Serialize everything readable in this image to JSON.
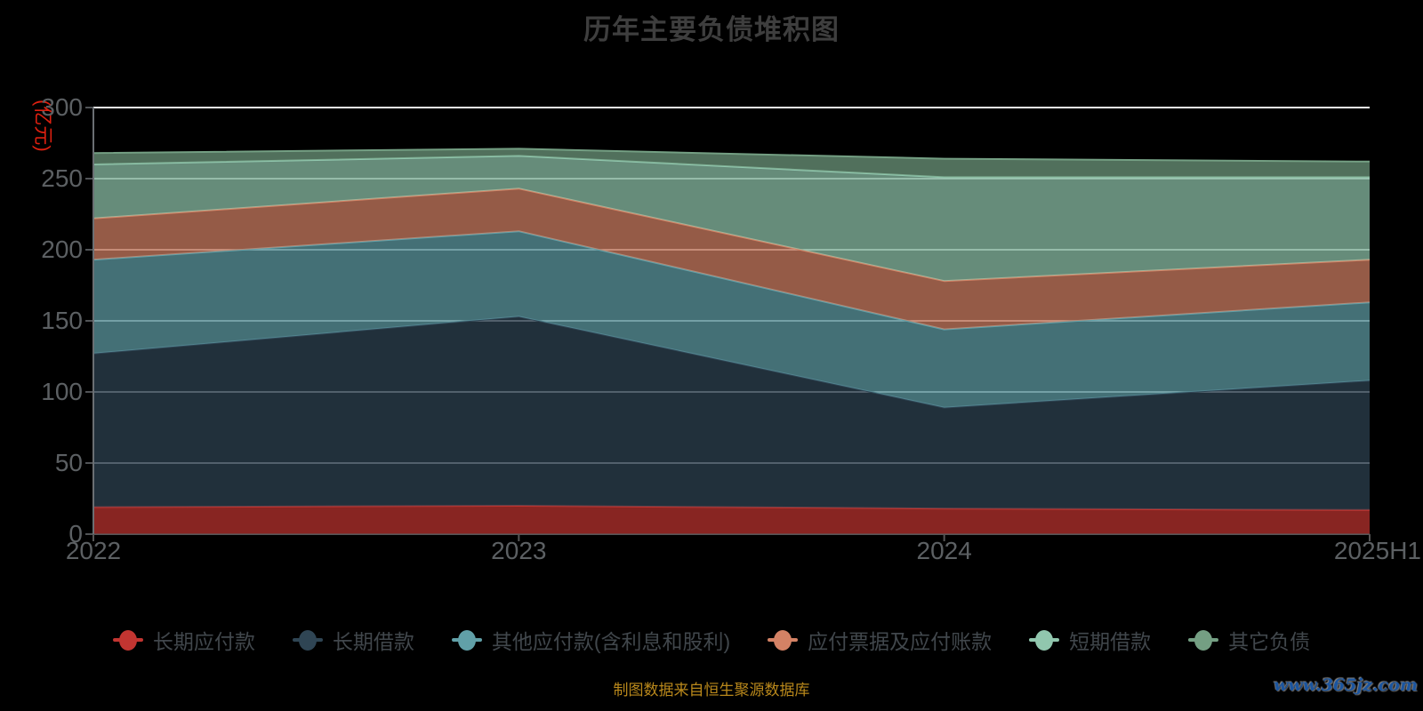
{
  "title": "历年主要负债堆积图",
  "caption": "制图数据来自恒生聚源数据库",
  "watermark": "www.365jz.com",
  "y_axis": {
    "name": "(亿元)",
    "ticks": [
      0,
      50,
      100,
      150,
      200,
      250,
      300
    ],
    "name_color": "#dd2010"
  },
  "x_axis": {
    "categories": [
      "2022",
      "2023",
      "2024",
      "2025H1"
    ]
  },
  "legend_items": [
    "长期应付款",
    "长期借款",
    "其他应付款(含利息和股利)",
    "应付票据及应付账款",
    "短期借款",
    "其它负债"
  ],
  "colors": {
    "background": "#000000",
    "grid_line": "#ffffff",
    "axis_line": "#6a6f73",
    "tick_label": "#5c6063",
    "title_text": "#3e3e3e",
    "caption_text": "#b9881b",
    "watermark_text": "#1b559f",
    "series": [
      "#c23531",
      "#2f4554",
      "#61a0a8",
      "#d48265",
      "#91c7ae",
      "#749f83"
    ]
  },
  "chart_data": {
    "type": "area",
    "stacked": true,
    "title": "历年主要负债堆积图",
    "ylabel": "(亿元)",
    "ylim": [
      0,
      300
    ],
    "y_interval": 50,
    "grid": true,
    "legend_position": "bottom",
    "categories": [
      "2022",
      "2023",
      "2024",
      "2025H1"
    ],
    "series": [
      {
        "name": "长期应付款",
        "color": "#c23531",
        "values": [
          19,
          20,
          18,
          17
        ]
      },
      {
        "name": "长期借款",
        "color": "#2f4554",
        "values": [
          108,
          133,
          71,
          91
        ]
      },
      {
        "name": "其他应付款(含利息和股利)",
        "color": "#61a0a8",
        "values": [
          66,
          60,
          55,
          55
        ]
      },
      {
        "name": "应付票据及应付账款",
        "color": "#d48265",
        "values": [
          29,
          30,
          34,
          30
        ]
      },
      {
        "name": "短期借款",
        "color": "#91c7ae",
        "values": [
          38,
          23,
          73,
          58
        ]
      },
      {
        "name": "其它负债",
        "color": "#749f83",
        "values": [
          8,
          5,
          13,
          11
        ]
      }
    ],
    "stack_totals": [
      268,
      271,
      264,
      262
    ]
  }
}
